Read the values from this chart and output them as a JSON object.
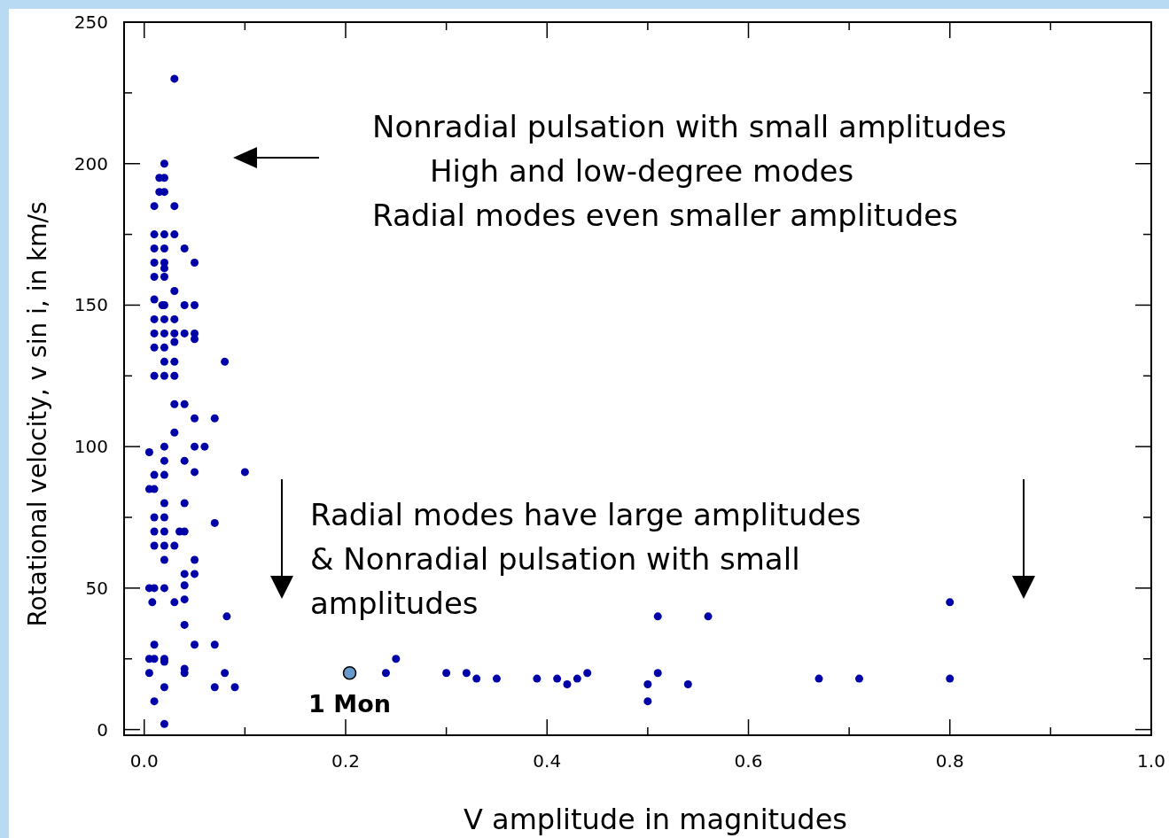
{
  "chart_data": {
    "type": "scatter",
    "xlabel": "V amplitude in magnitudes",
    "ylabel": "Rotational velocity,  v sin i, in km/s",
    "xlim": [
      -0.02,
      1.0
    ],
    "ylim": [
      -2,
      250
    ],
    "marker": "circle",
    "grid": false,
    "xticks": [
      {
        "value": 0,
        "label": "0.0"
      },
      {
        "value": 0.1,
        "label": null
      },
      {
        "value": 0.2,
        "label": "0.2"
      },
      {
        "value": 0.3,
        "label": null
      },
      {
        "value": 0.4,
        "label": "0.4"
      },
      {
        "value": 0.5,
        "label": null
      },
      {
        "value": 0.6,
        "label": "0.6"
      },
      {
        "value": 0.7,
        "label": null
      },
      {
        "value": 0.8,
        "label": "0.8"
      },
      {
        "value": 0.9,
        "label": null
      },
      {
        "value": 1.0,
        "label": "1.0"
      }
    ],
    "yticks": [
      0,
      {
        "value": 25,
        "label": null
      },
      50,
      {
        "value": 75,
        "label": null
      },
      100,
      {
        "value": 125,
        "label": null
      },
      150,
      {
        "value": 175,
        "label": null
      },
      200,
      {
        "value": 225,
        "label": null
      },
      250
    ],
    "series": [
      {
        "color": "#0000a8",
        "x": [
          0.03,
          0.02,
          0.015,
          0.02,
          0.015,
          0.02,
          0.01,
          0.03,
          0.01,
          0.02,
          0.03,
          0.01,
          0.02,
          0.04,
          0.01,
          0.02,
          0.05,
          0.02,
          0.01,
          0.02,
          0.03,
          0.01,
          0.018,
          0.02,
          0.04,
          0.05,
          0.01,
          0.02,
          0.03,
          0.01,
          0.02,
          0.03,
          0.04,
          0.05,
          0.05,
          0.03,
          0.01,
          0.02,
          0.02,
          0.03,
          0.08,
          0.01,
          0.02,
          0.03,
          0.03,
          0.04,
          0.05,
          0.07,
          0.03,
          0.02,
          0.05,
          0.06,
          0.005,
          0.02,
          0.04,
          0.01,
          0.02,
          0.05,
          0.1,
          0.005,
          0.01,
          0.02,
          0.04,
          0.01,
          0.02,
          0.07,
          0.01,
          0.02,
          0.035,
          0.04,
          0.01,
          0.02,
          0.03,
          0.02,
          0.05,
          0.04,
          0.05,
          0.005,
          0.01,
          0.02,
          0.04,
          0.008,
          0.03,
          0.04,
          0.082,
          0.04,
          0.01,
          0.05,
          0.07,
          0.005,
          0.01,
          0.02,
          0.02,
          0.005,
          0.04,
          0.04,
          0.08,
          0.02,
          0.07,
          0.09,
          0.01,
          0.02,
          0.24,
          0.25,
          0.3,
          0.32,
          0.33,
          0.35,
          0.39,
          0.41,
          0.42,
          0.43,
          0.44,
          0.5,
          0.5,
          0.51,
          0.51,
          0.54,
          0.56,
          0.67,
          0.71,
          0.8,
          0.8
        ],
        "values": [
          230,
          200,
          195,
          195,
          190,
          190,
          185,
          185,
          175,
          175,
          175,
          170,
          170,
          170,
          165,
          165,
          165,
          163,
          160,
          160,
          155,
          152,
          150,
          150,
          150,
          150,
          145,
          145,
          145,
          140,
          140,
          140,
          140,
          140,
          138,
          137,
          135,
          135,
          130,
          130,
          130,
          125,
          125,
          125,
          115,
          115,
          110,
          110,
          105,
          100,
          100,
          100,
          98,
          95,
          95,
          90,
          90,
          91,
          91,
          85,
          85,
          80,
          80,
          75,
          75,
          73,
          70,
          70,
          70,
          70,
          65,
          65,
          65,
          60,
          60,
          55,
          55,
          50,
          50,
          50,
          51,
          45,
          45,
          46,
          40,
          37,
          30,
          30,
          30,
          25,
          25,
          25,
          24,
          20,
          21.5,
          20,
          20,
          15,
          15,
          15,
          10,
          2,
          20,
          25,
          20,
          20,
          18,
          18,
          18,
          18,
          16,
          18,
          20,
          16,
          10,
          20,
          40,
          16,
          40,
          18,
          18,
          18,
          45
        ]
      },
      {
        "color": "#6699cc",
        "x": [
          0.204
        ],
        "values": [
          20
        ]
      }
    ],
    "annotations": [
      "Nonradial pulsation with small amplitudes",
      "High and low-degree modes",
      "Radial modes even smaller amplitudes",
      "Radial modes have large amplitudes",
      "& Nonradial pulsation with small",
      "amplitudes",
      {
        "text": "1 Mon",
        "x": 0.204,
        "y": 20
      }
    ]
  }
}
